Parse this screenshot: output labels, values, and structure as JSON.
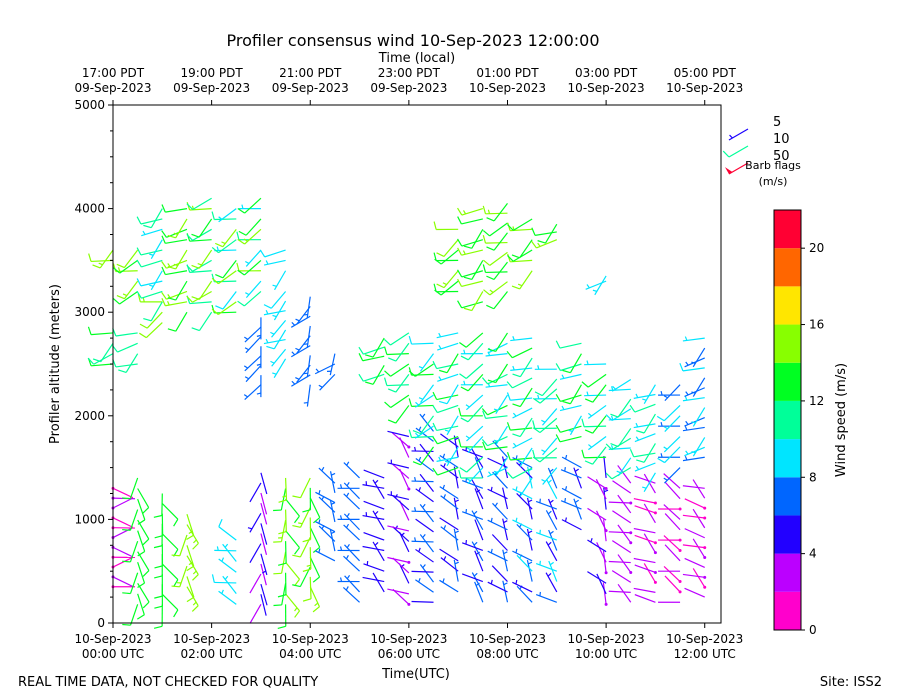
{
  "chart_data": {
    "type": "wind-barb-profile",
    "title": "Profiler consensus wind 10-Sep-2023 12:00:00",
    "top_axis_title": "Time (local)",
    "xlabel": "Time(UTC)",
    "ylabel": "Profiler altitude (meters)",
    "ylim": [
      0,
      5000
    ],
    "y_ticks": [
      0,
      1000,
      2000,
      3000,
      4000,
      5000
    ],
    "xlim_hours_utc": [
      0,
      12.33
    ],
    "bottom_ticks": [
      {
        "hour": 0,
        "line1": "10-Sep-2023",
        "line2": "00:00 UTC"
      },
      {
        "hour": 2,
        "line1": "10-Sep-2023",
        "line2": "02:00 UTC"
      },
      {
        "hour": 4,
        "line1": "10-Sep-2023",
        "line2": "04:00 UTC"
      },
      {
        "hour": 6,
        "line1": "10-Sep-2023",
        "line2": "06:00 UTC"
      },
      {
        "hour": 8,
        "line1": "10-Sep-2023",
        "line2": "08:00 UTC"
      },
      {
        "hour": 10,
        "line1": "10-Sep-2023",
        "line2": "10:00 UTC"
      },
      {
        "hour": 12,
        "line1": "10-Sep-2023",
        "line2": "12:00 UTC"
      }
    ],
    "top_ticks": [
      {
        "hour": 0,
        "line1": "17:00 PDT",
        "line2": "09-Sep-2023"
      },
      {
        "hour": 2,
        "line1": "19:00 PDT",
        "line2": "09-Sep-2023"
      },
      {
        "hour": 4,
        "line1": "21:00 PDT",
        "line2": "09-Sep-2023"
      },
      {
        "hour": 6,
        "line1": "23:00 PDT",
        "line2": "09-Sep-2023"
      },
      {
        "hour": 8,
        "line1": "01:00 PDT",
        "line2": "10-Sep-2023"
      },
      {
        "hour": 10,
        "line1": "03:00 PDT",
        "line2": "10-Sep-2023"
      },
      {
        "hour": 12,
        "line1": "05:00 PDT",
        "line2": "10-Sep-2023"
      }
    ],
    "legend": {
      "title_line1": "Barb flags",
      "title_line2": "(m/s)",
      "entries": [
        {
          "label": "5",
          "color": "#1a00ff",
          "speed": 5
        },
        {
          "label": "10",
          "color": "#00ff99",
          "speed": 10
        },
        {
          "label": "50",
          "color": "#ff0033",
          "speed": 50
        }
      ]
    },
    "colorbar": {
      "label": "Wind speed (m/s)",
      "min": 0,
      "max": 22,
      "ticks": [
        0,
        4,
        8,
        12,
        16,
        20
      ],
      "bins": [
        {
          "from": 0,
          "to": 2,
          "color": "#ff00cc"
        },
        {
          "from": 2,
          "to": 4,
          "color": "#bb00ff"
        },
        {
          "from": 4,
          "to": 6,
          "color": "#2200ff"
        },
        {
          "from": 6,
          "to": 8,
          "color": "#0066ff"
        },
        {
          "from": 8,
          "to": 10,
          "color": "#00e5ff"
        },
        {
          "from": 10,
          "to": 12,
          "color": "#00ff99"
        },
        {
          "from": 12,
          "to": 14,
          "color": "#00ff22"
        },
        {
          "from": 14,
          "to": 16,
          "color": "#88ff00"
        },
        {
          "from": 16,
          "to": 18,
          "color": "#ffe600"
        },
        {
          "from": 18,
          "to": 20,
          "color": "#ff6600"
        },
        {
          "from": 20,
          "to": 22,
          "color": "#ff0033"
        }
      ]
    },
    "barb_columns": [
      {
        "hour": 0.0,
        "segments": [
          [
            350,
            1300,
            1,
            2.5,
            90
          ],
          [
            2500,
            2800,
            11,
            13,
            240
          ],
          [
            3500,
            3600,
            14,
            16,
            240
          ]
        ]
      },
      {
        "hour": 0.5,
        "segments": [
          [
            180,
            1400,
            12,
            14,
            170
          ],
          [
            2500,
            2800,
            10,
            12,
            240
          ],
          [
            3200,
            3600,
            13,
            16,
            240
          ]
        ]
      },
      {
        "hour": 1.0,
        "segments": [
          [
            180,
            1250,
            12,
            14,
            165
          ],
          [
            2900,
            3100,
            14,
            16,
            240
          ],
          [
            3100,
            4000,
            9,
            12,
            240
          ]
        ]
      },
      {
        "hour": 1.5,
        "segments": [
          [
            350,
            1050,
            14,
            16,
            170
          ],
          [
            3000,
            4000,
            12,
            16,
            240
          ]
        ]
      },
      {
        "hour": 2.0,
        "segments": [
          [
            3000,
            4100,
            10,
            15,
            240
          ]
        ]
      },
      {
        "hour": 2.5,
        "segments": [
          [
            180,
            800,
            8,
            10,
            300
          ],
          [
            3000,
            4000,
            9,
            15,
            240
          ]
        ]
      },
      {
        "hour": 3.0,
        "segments": [
          [
            180,
            1450,
            3,
            5,
            180
          ],
          [
            2300,
            2950,
            6,
            8,
            210
          ],
          [
            3200,
            4100,
            9,
            15,
            240
          ]
        ]
      },
      {
        "hour": 3.5,
        "segments": [
          [
            180,
            1400,
            12,
            15,
            170
          ],
          [
            2550,
            3200,
            8,
            10,
            230
          ],
          [
            3400,
            3600,
            8,
            10,
            240
          ]
        ]
      },
      {
        "hour": 4.0,
        "segments": [
          [
            350,
            1400,
            13,
            15,
            180
          ],
          [
            2300,
            3150,
            6,
            8,
            215
          ]
        ]
      },
      {
        "hour": 4.5,
        "segments": [
          [
            600,
            1350,
            6,
            8,
            320
          ],
          [
            2400,
            2600,
            6,
            8,
            220
          ]
        ]
      },
      {
        "hour": 5.0,
        "segments": [
          [
            200,
            1400,
            6,
            8,
            300
          ]
        ]
      },
      {
        "hour": 5.5,
        "segments": [
          [
            300,
            1400,
            4,
            6,
            300
          ],
          [
            2400,
            2750,
            10,
            14,
            240
          ]
        ]
      },
      {
        "hour": 6.0,
        "segments": [
          [
            180,
            1800,
            2,
            6,
            310
          ],
          [
            2100,
            2800,
            10,
            14,
            240
          ]
        ]
      },
      {
        "hour": 6.5,
        "segments": [
          [
            200,
            1850,
            4,
            8,
            300
          ],
          [
            1700,
            2700,
            8,
            14,
            240
          ]
        ]
      },
      {
        "hour": 7.0,
        "segments": [
          [
            300,
            1700,
            4,
            8,
            320
          ],
          [
            1500,
            2800,
            8,
            13,
            240
          ],
          [
            3200,
            3800,
            12,
            15,
            240
          ]
        ]
      },
      {
        "hour": 7.5,
        "segments": [
          [
            200,
            1600,
            4,
            8,
            320
          ],
          [
            1400,
            2800,
            8,
            13,
            240
          ],
          [
            3100,
            4000,
            12,
            15,
            240
          ]
        ]
      },
      {
        "hour": 8.0,
        "segments": [
          [
            200,
            1600,
            4,
            8,
            320
          ],
          [
            1500,
            2800,
            8,
            13,
            240
          ],
          [
            3200,
            4050,
            12,
            15,
            240
          ]
        ]
      },
      {
        "hour": 8.5,
        "segments": [
          [
            200,
            1500,
            5,
            9,
            320
          ],
          [
            1400,
            2750,
            8,
            13,
            240
          ],
          [
            3400,
            3900,
            12,
            15,
            240
          ]
        ]
      },
      {
        "hour": 9.0,
        "segments": [
          [
            200,
            1300,
            5,
            9,
            320
          ],
          [
            1500,
            2450,
            8,
            12,
            240
          ],
          [
            3700,
            3850,
            12,
            15,
            240
          ]
        ]
      },
      {
        "hour": 9.5,
        "segments": [
          [
            900,
            1500,
            5,
            8,
            310
          ],
          [
            1800,
            2700,
            8,
            14,
            240
          ]
        ]
      },
      {
        "hour": 10.0,
        "segments": [
          [
            180,
            1400,
            2,
            5,
            330
          ],
          [
            1600,
            2500,
            8,
            14,
            240
          ],
          [
            3300,
            3350,
            9,
            11,
            240
          ]
        ]
      },
      {
        "hour": 10.5,
        "segments": [
          [
            200,
            1350,
            2,
            4,
            300
          ],
          [
            1500,
            2350,
            8,
            12,
            240
          ]
        ]
      },
      {
        "hour": 11.0,
        "segments": [
          [
            200,
            1350,
            1,
            4,
            300
          ],
          [
            1450,
            2300,
            8,
            11,
            240
          ]
        ]
      },
      {
        "hour": 11.5,
        "segments": [
          [
            200,
            1300,
            1,
            4,
            300
          ],
          [
            1500,
            2300,
            7,
            10,
            240
          ]
        ]
      },
      {
        "hour": 12.0,
        "segments": [
          [
            250,
            1300,
            1,
            4,
            300
          ],
          [
            1600,
            2750,
            6,
            10,
            240
          ]
        ]
      }
    ]
  },
  "footer": {
    "quality_note": "REAL TIME DATA, NOT CHECKED FOR QUALITY",
    "site": "Site: ISS2"
  }
}
